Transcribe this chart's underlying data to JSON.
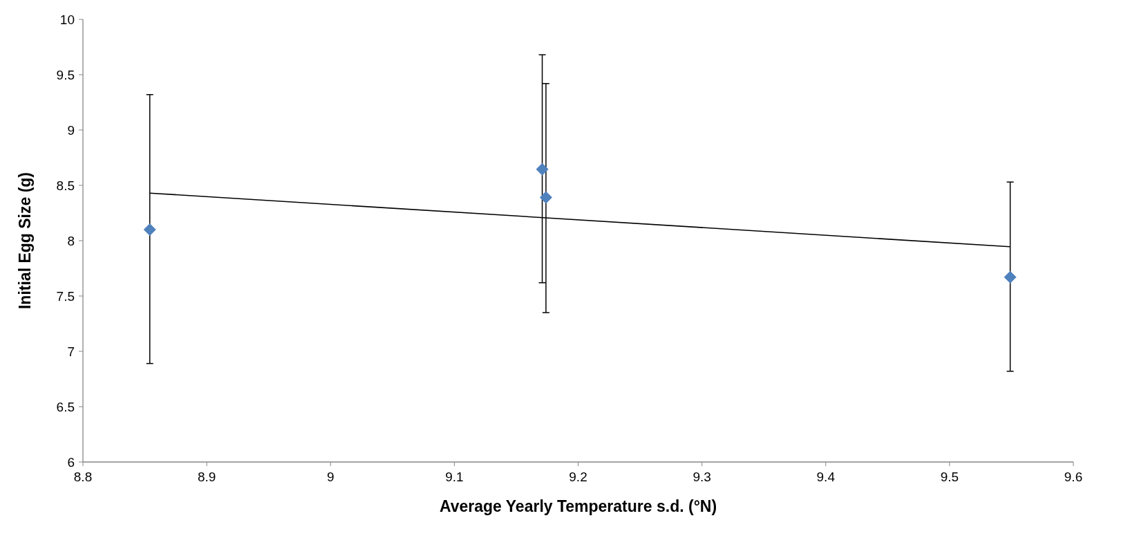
{
  "chart_data": {
    "type": "scatter",
    "xlabel": "Average Yearly Temperature s.d. (°N)",
    "ylabel": "Initial Egg Size (g)",
    "xlim": [
      8.8,
      9.6
    ],
    "xticks": [
      8.8,
      8.9,
      9,
      9.1,
      9.2,
      9.3,
      9.4,
      9.5,
      9.6
    ],
    "ylim": [
      6,
      10
    ],
    "yticks": [
      6,
      6.5,
      7,
      7.5,
      8,
      8.5,
      9,
      9.5,
      10
    ],
    "grid": false,
    "series": [
      {
        "color": "#4f81bd",
        "marker": "diamond",
        "x": [
          8.854,
          9.171,
          9.174,
          9.549
        ],
        "values": [
          8.1,
          8.645,
          8.39,
          7.67
        ],
        "errors": [
          [
            6.89,
            9.32
          ],
          [
            7.62,
            9.68
          ],
          [
            7.35,
            9.42
          ],
          [
            6.82,
            8.53
          ]
        ]
      },
      {
        "type": "line",
        "color": "#000000",
        "x": [
          8.854,
          9.549
        ],
        "values": [
          8.43,
          7.945
        ],
        "line_style": "solid"
      }
    ]
  }
}
